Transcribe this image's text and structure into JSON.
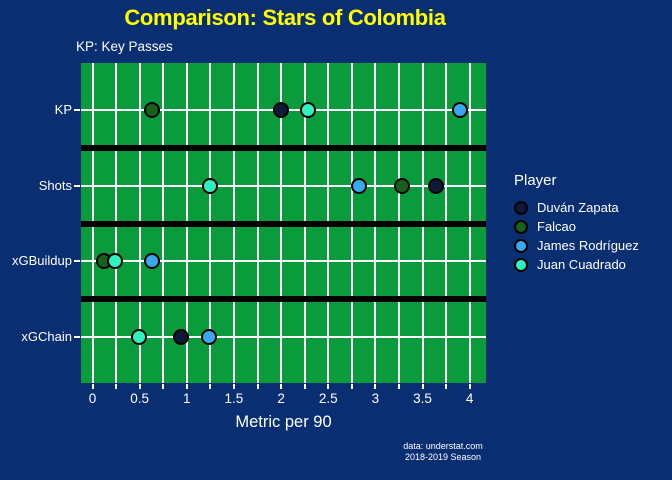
{
  "title": "Comparison: Stars of Colombia",
  "subtitle": "KP: Key Passes",
  "footer": {
    "line1": "data: understat.com",
    "line2": "2018-2019 Season"
  },
  "legend": {
    "title": "Player"
  },
  "colors": {
    "background": "#0a2e72",
    "plot_background": "#0a9c3c",
    "title": "#ffff00",
    "text": "#ffffff",
    "gridline": "#ffffff",
    "row_separator": "#000000",
    "marker_outline": "#000000"
  },
  "chart_data": {
    "type": "scatter",
    "orientation": "horizontal_categorical_dotplot",
    "title": "Comparison: Stars of Colombia",
    "subtitle": "KP: Key Passes",
    "xlabel": "Metric per 90",
    "categories": [
      "KP",
      "Shots",
      "xGBuildup",
      "xGChain"
    ],
    "xlim": [
      -0.12,
      4.17
    ],
    "x_grid_step": 0.25,
    "grid": "on",
    "legend_position": "right",
    "x_ticks": {
      "values": [
        0,
        0.5,
        1,
        1.5,
        2,
        2.5,
        3,
        3.5,
        4
      ],
      "labels": [
        "0",
        "0.5",
        "1",
        "1.5",
        "2",
        "2.5",
        "3",
        "3.5",
        "4"
      ]
    },
    "series": [
      {
        "name": "Duván Zapata",
        "color": "#0d1b38",
        "values": {
          "KP": 2.0,
          "Shots": 3.64,
          "xGBuildup": null,
          "xGChain": 0.94
        }
      },
      {
        "name": "Falcao",
        "color": "#17611d",
        "values": {
          "KP": 0.63,
          "Shots": 3.28,
          "xGBuildup": 0.12,
          "xGChain": null
        }
      },
      {
        "name": "James Rodríguez",
        "color": "#38a8f0",
        "values": {
          "KP": 3.9,
          "Shots": 2.83,
          "xGBuildup": 0.63,
          "xGChain": 1.24
        }
      },
      {
        "name": "Juan Cuadrado",
        "color": "#2ef2c0",
        "values": {
          "KP": 2.28,
          "Shots": 1.25,
          "xGBuildup": 0.24,
          "xGChain": 0.49
        }
      }
    ],
    "note": "null = marker not visible (hidden behind another player's marker)"
  }
}
